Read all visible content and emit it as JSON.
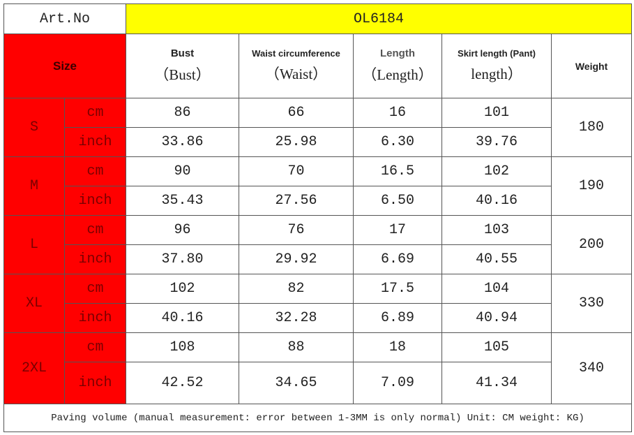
{
  "header": {
    "art_label": "Art.No",
    "art_value": "OL6184"
  },
  "columns": {
    "size": "Size",
    "measures": [
      {
        "title": "Bust",
        "sub": "（Bust）"
      },
      {
        "title": "Waist circumference",
        "sub": "（Waist）"
      },
      {
        "title": "Length",
        "sub": "（Length）"
      },
      {
        "title": "Skirt length (Pant)",
        "sub": "length）"
      }
    ],
    "weight": "Weight"
  },
  "rows": [
    {
      "size": "S",
      "unit_cm": "cm",
      "unit_inch": "inch",
      "cm": [
        "86",
        "66",
        "16",
        "101"
      ],
      "inch": [
        "33.86",
        "25.98",
        "6.30",
        "39.76"
      ],
      "weight": "180"
    },
    {
      "size": "M",
      "unit_cm": "cm",
      "unit_inch": "inch",
      "cm": [
        "90",
        "70",
        "16.5",
        "102"
      ],
      "inch": [
        "35.43",
        "27.56",
        "6.50",
        "40.16"
      ],
      "weight": "190"
    },
    {
      "size": "L",
      "unit_cm": "cm",
      "unit_inch": "inch",
      "cm": [
        "96",
        "76",
        "17",
        "103"
      ],
      "inch": [
        "37.80",
        "29.92",
        "6.69",
        "40.55"
      ],
      "weight": "200"
    },
    {
      "size": "XL",
      "unit_cm": "cm",
      "unit_inch": "inch",
      "cm": [
        "102",
        "82",
        "17.5",
        "104"
      ],
      "inch": [
        "40.16",
        "32.28",
        "6.89",
        "40.94"
      ],
      "weight": "330"
    },
    {
      "size": "2XL",
      "unit_cm": "cm",
      "unit_inch": "inch",
      "cm": [
        "108",
        "88",
        "18",
        "105"
      ],
      "inch": [
        "42.52",
        "34.65",
        "7.09",
        "41.34"
      ],
      "weight": "340"
    }
  ],
  "footer": "Paving volume (manual measurement: error between 1-3MM is only normal) Unit: CM weight: KG)"
}
